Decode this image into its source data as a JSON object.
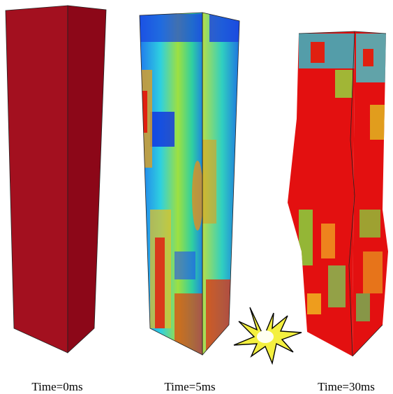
{
  "panels": [
    {
      "label": "Time=0ms"
    },
    {
      "label": "Time=5ms"
    },
    {
      "label": "Time=30ms"
    }
  ]
}
